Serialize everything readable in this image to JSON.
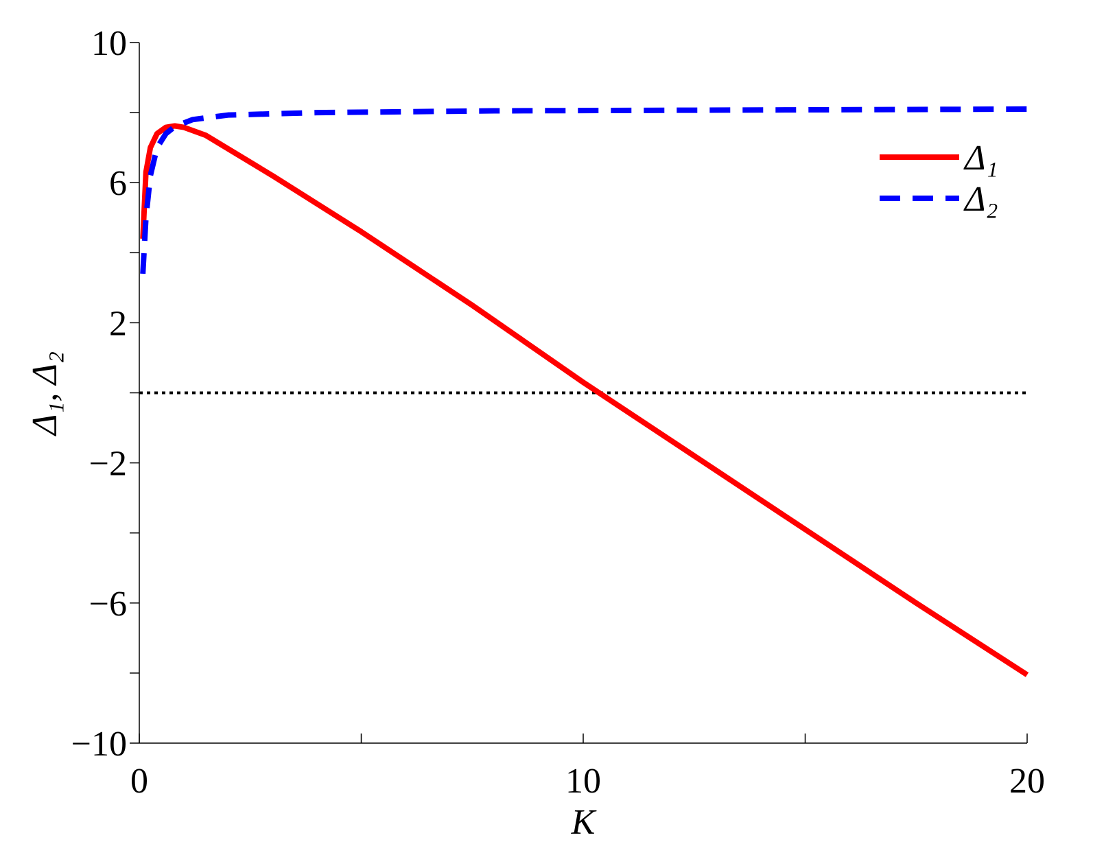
{
  "chart_data": {
    "type": "line",
    "x_label": "K",
    "y_label": "Δ₁, Δ₂",
    "xlim": [
      0,
      20
    ],
    "ylim": [
      -10,
      10
    ],
    "xticks": [
      0,
      10,
      20
    ],
    "xminorticks": [
      5,
      15
    ],
    "yticks": [
      {
        "value": -10,
        "label": "−10"
      },
      {
        "value": -6,
        "label": "−6"
      },
      {
        "value": -2,
        "label": "−2"
      },
      2,
      6,
      10
    ],
    "yminorticks": [
      -8,
      -4,
      0,
      4,
      8
    ],
    "reference_line": 0,
    "legend": "upper right",
    "series": [
      {
        "name": "Δ₁",
        "color": "#ff0000",
        "style": "solid",
        "x": [
          0.08,
          0.15,
          0.25,
          0.4,
          0.6,
          0.8,
          1.0,
          1.5,
          3,
          5,
          7.5,
          10,
          12.5,
          15,
          17.5,
          20
        ],
        "values": [
          4.4,
          6.3,
          7.0,
          7.4,
          7.58,
          7.62,
          7.58,
          7.35,
          6.2,
          4.6,
          2.5,
          0.3,
          -1.8,
          -3.9,
          -6.0,
          -8.05
        ]
      },
      {
        "name": "Δ₂",
        "color": "#0000ff",
        "style": "dashed",
        "x": [
          0.08,
          0.15,
          0.25,
          0.4,
          0.6,
          0.8,
          1.2,
          2,
          4,
          8,
          20
        ],
        "values": [
          3.4,
          5.0,
          6.2,
          7.0,
          7.4,
          7.6,
          7.8,
          7.93,
          8.0,
          8.05,
          8.1
        ]
      }
    ]
  }
}
